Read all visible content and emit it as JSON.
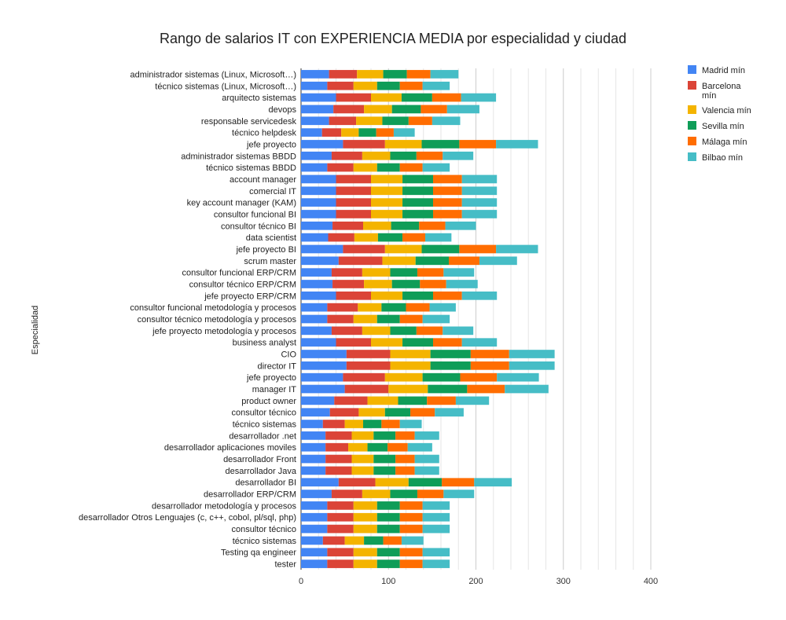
{
  "chart_data": {
    "type": "bar",
    "orientation": "horizontal",
    "stacked": true,
    "title": "Rango de salarios IT con EXPERIENCIA MEDIA por especialidad y ciudad",
    "xlabel": "",
    "ylabel": "Especialidad",
    "xlim": [
      0,
      400
    ],
    "xticks": [
      0,
      100,
      200,
      300,
      400
    ],
    "grid": true,
    "legend_position": "right",
    "categories": [
      "administrador sistemas (Linux, Microsoft…)",
      "técnico sistemas (Linux, Microsoft…)",
      "arquitecto sistemas",
      "devops",
      "responsable servicedesk",
      "técnico helpdesk",
      "jefe proyecto",
      "administrador sistemas BBDD",
      "técnico sistemas BBDD",
      "account manager",
      "comercial IT",
      "key account manager (KAM)",
      "consultor funcional BI",
      "consultor técnico BI",
      "data scientist",
      "jefe proyecto BI",
      "scrum master",
      "consultor funcional ERP/CRM",
      "consultor técnico ERP/CRM",
      "jefe proyecto ERP/CRM",
      "consultor funcional metodología y procesos",
      "consultor técnico metodología y procesos",
      "jefe proyecto metodología y procesos",
      "business analyst",
      "CIO",
      "director IT",
      "jefe proyecto",
      "manager IT",
      "product owner",
      "consultor técnico",
      "técnico sistemas",
      "desarrollador .net",
      "desarrollador aplicaciones moviles",
      "desarrollador Front",
      "desarrollador Java",
      "desarrollador BI",
      "desarrollador ERP/CRM",
      "desarrollador metodología y procesos",
      "desarrollador Otros Lenguajes (c, c++, cobol, pl/sql, php)",
      "consultor técnico",
      "técnico sistemas",
      "Testing qa engineer",
      "tester"
    ],
    "series": [
      {
        "name": "Madrid mín",
        "color": "#4285f4",
        "values": [
          32,
          30,
          40,
          37,
          32,
          24,
          48,
          35,
          30,
          40,
          40,
          40,
          40,
          36,
          31,
          48,
          43,
          35,
          36,
          40,
          30,
          30,
          35,
          40,
          52,
          52,
          48,
          50,
          38,
          33,
          25,
          28,
          28,
          28,
          28,
          43,
          35,
          30,
          30,
          30,
          25,
          30,
          30
        ]
      },
      {
        "name": "Barcelona mín",
        "color": "#db4437",
        "values": [
          32,
          30,
          40,
          35,
          31,
          22,
          48,
          35,
          30,
          40,
          40,
          40,
          40,
          35,
          30,
          48,
          50,
          35,
          36,
          40,
          35,
          30,
          35,
          40,
          50,
          50,
          48,
          50,
          38,
          33,
          25,
          30,
          26,
          30,
          30,
          42,
          35,
          30,
          30,
          30,
          25,
          30,
          30
        ]
      },
      {
        "name": "Valencia mín",
        "color": "#f4b400",
        "values": [
          30,
          27,
          35,
          32,
          30,
          20,
          42,
          32,
          27,
          36,
          36,
          36,
          36,
          32,
          27,
          42,
          38,
          32,
          32,
          36,
          27,
          27,
          32,
          36,
          46,
          46,
          43,
          45,
          35,
          30,
          21,
          25,
          22,
          25,
          25,
          38,
          32,
          27,
          27,
          27,
          22,
          27,
          27
        ]
      },
      {
        "name": "Sevilla mín",
        "color": "#0f9d58",
        "values": [
          27,
          26,
          35,
          33,
          30,
          20,
          43,
          30,
          26,
          35,
          35,
          35,
          35,
          32,
          28,
          43,
          38,
          31,
          32,
          35,
          28,
          26,
          30,
          35,
          46,
          46,
          43,
          45,
          33,
          29,
          21,
          25,
          23,
          25,
          25,
          38,
          31,
          26,
          26,
          26,
          22,
          26,
          26
        ]
      },
      {
        "name": "Málaga mín",
        "color": "#ff6d01",
        "values": [
          27,
          26,
          33,
          30,
          27,
          20,
          42,
          30,
          26,
          33,
          33,
          33,
          33,
          30,
          26,
          42,
          35,
          30,
          30,
          33,
          27,
          26,
          30,
          33,
          44,
          44,
          42,
          43,
          33,
          28,
          21,
          22,
          23,
          22,
          22,
          37,
          30,
          26,
          26,
          26,
          21,
          26,
          26
        ]
      },
      {
        "name": "Bilbao mín",
        "color": "#46bdc6",
        "values": [
          32,
          31,
          40,
          37,
          32,
          24,
          48,
          35,
          31,
          40,
          40,
          40,
          40,
          35,
          30,
          48,
          43,
          35,
          36,
          40,
          30,
          31,
          35,
          40,
          52,
          52,
          48,
          50,
          38,
          33,
          25,
          28,
          28,
          28,
          28,
          43,
          35,
          31,
          31,
          31,
          25,
          31,
          31
        ]
      }
    ]
  }
}
